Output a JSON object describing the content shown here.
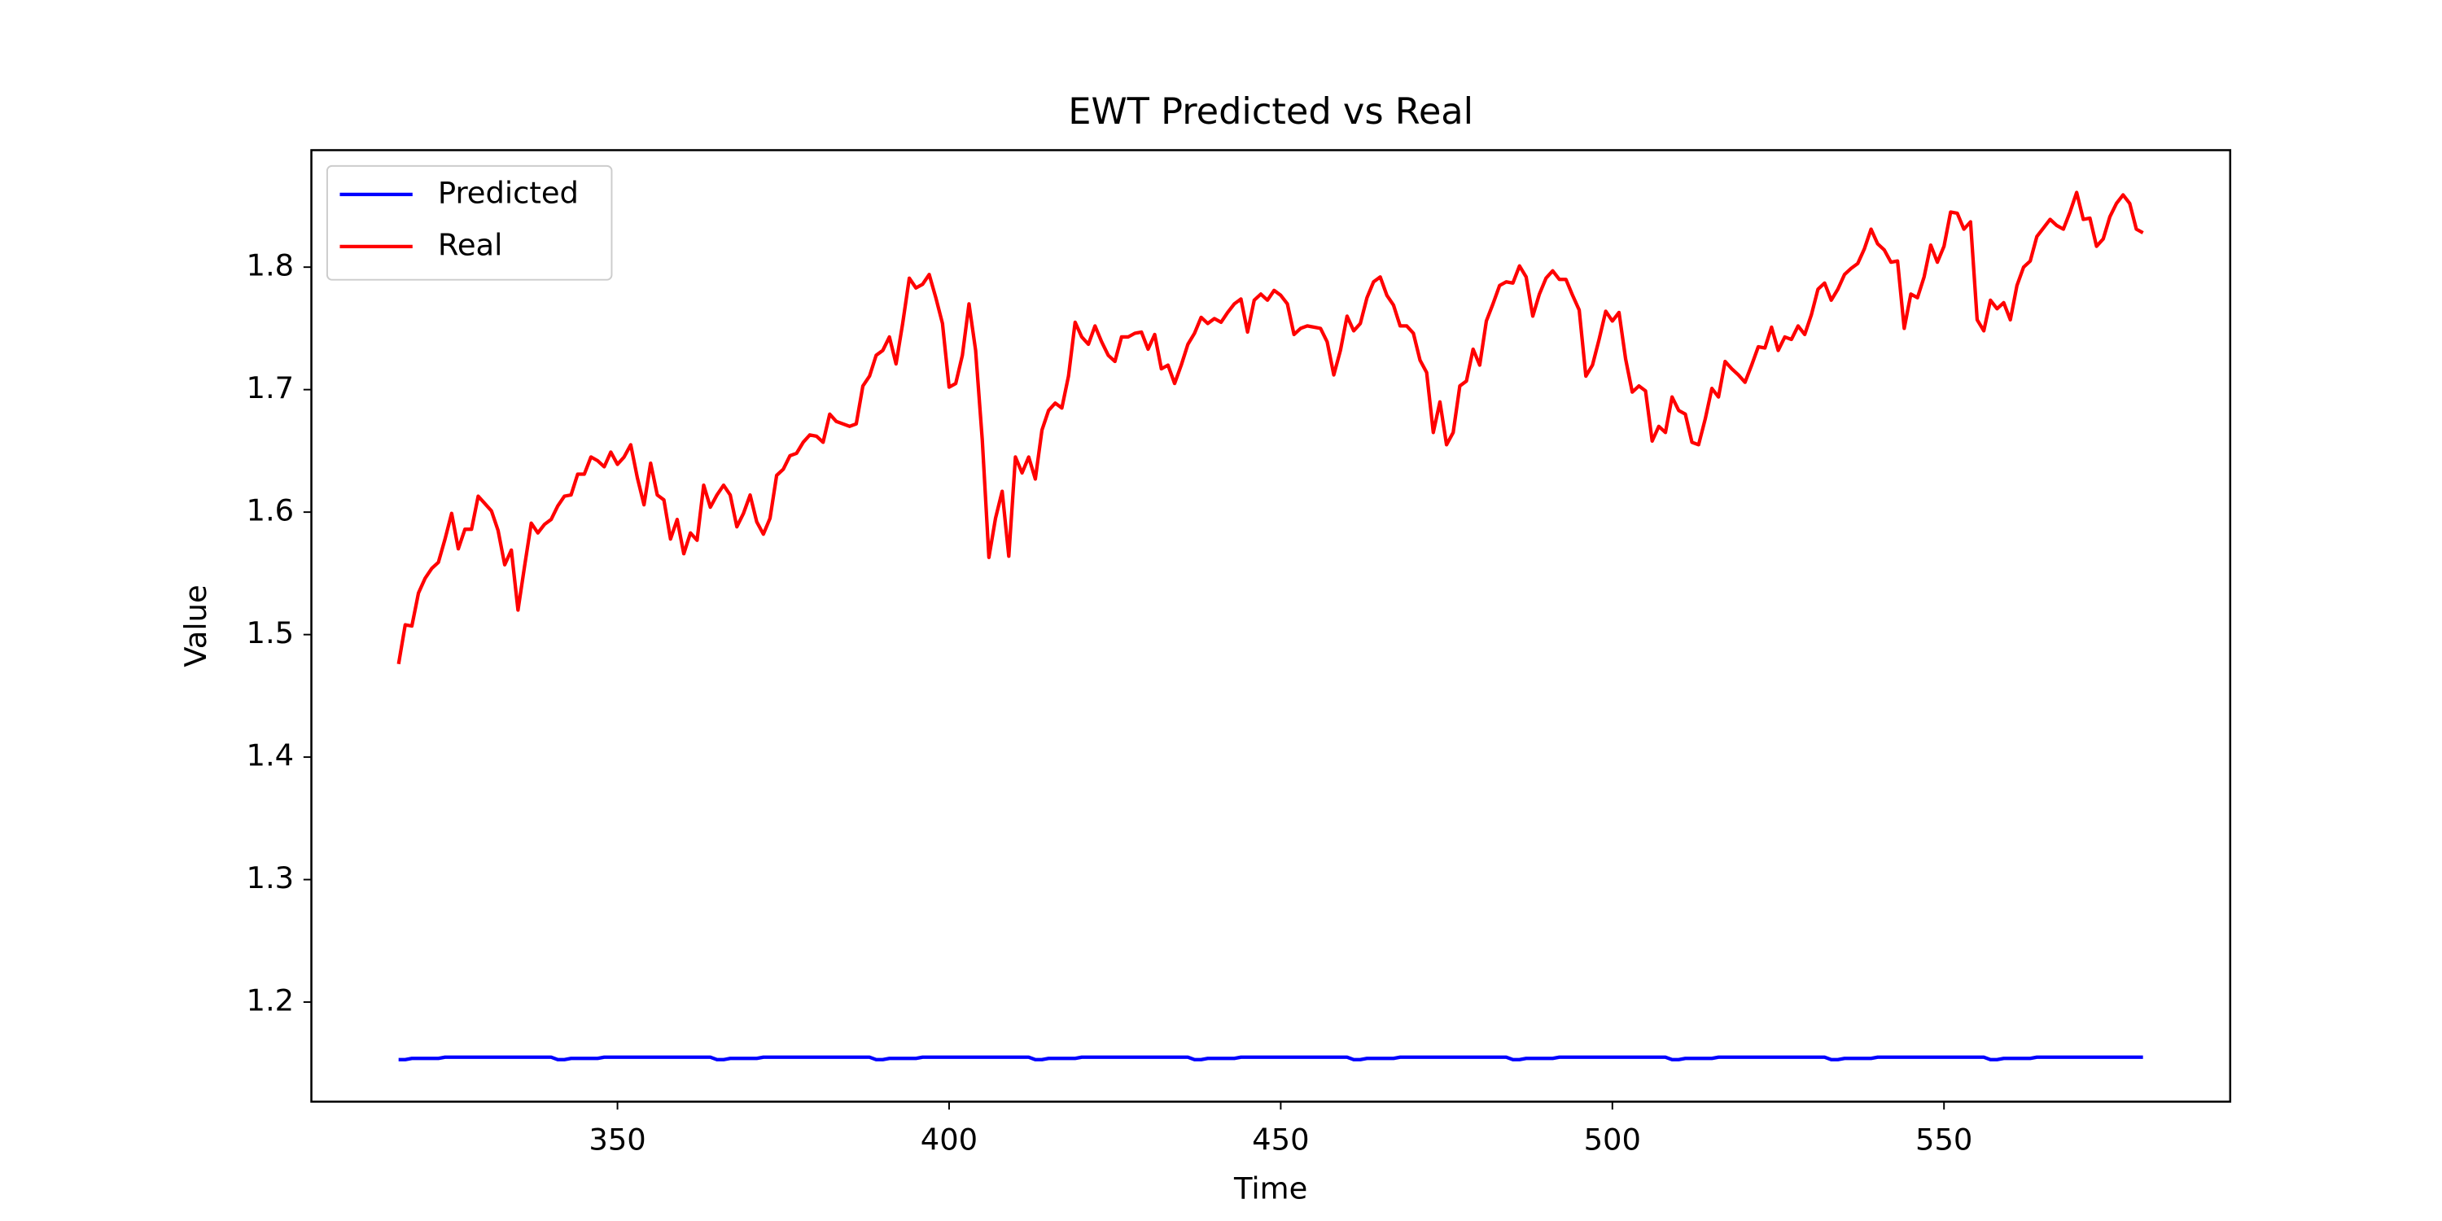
{
  "chart_data": {
    "type": "line",
    "title": "EWT Predicted vs Real",
    "xlabel": "Time",
    "ylabel": "Value",
    "x": [
      317,
      318,
      319,
      320,
      321,
      322,
      323,
      324,
      325,
      326,
      327,
      328,
      329,
      330,
      331,
      332,
      333,
      334,
      335,
      336,
      337,
      338,
      339,
      340,
      341,
      342,
      343,
      344,
      345,
      346,
      347,
      348,
      349,
      350,
      351,
      352,
      353,
      354,
      355,
      356,
      357,
      358,
      359,
      360,
      361,
      362,
      363,
      364,
      365,
      366,
      367,
      368,
      369,
      370,
      371,
      372,
      373,
      374,
      375,
      376,
      377,
      378,
      379,
      380,
      381,
      382,
      383,
      384,
      385,
      386,
      387,
      388,
      389,
      390,
      391,
      392,
      393,
      394,
      395,
      396,
      397,
      398,
      399,
      400,
      401,
      402,
      403,
      404,
      405,
      406,
      407,
      408,
      409,
      410,
      411,
      412,
      413,
      414,
      415,
      416,
      417,
      418,
      419,
      420,
      421,
      422,
      423,
      424,
      425,
      426,
      427,
      428,
      429,
      430,
      431,
      432,
      433,
      434,
      435,
      436,
      437,
      438,
      439,
      440,
      441,
      442,
      443,
      444,
      445,
      446,
      447,
      448,
      449,
      450,
      451,
      452,
      453,
      454,
      455,
      456,
      457,
      458,
      459,
      460,
      461,
      462,
      463,
      464,
      465,
      466,
      467,
      468,
      469,
      470,
      471,
      472,
      473,
      474,
      475,
      476,
      477,
      478,
      479,
      480,
      481,
      482,
      483,
      484,
      485,
      486,
      487,
      488,
      489,
      490,
      491,
      492,
      493,
      494,
      495,
      496,
      497,
      498,
      499,
      500,
      501,
      502,
      503,
      504,
      505,
      506,
      507,
      508,
      509,
      510,
      511,
      512,
      513,
      514,
      515,
      516,
      517,
      518,
      519,
      520,
      521,
      522,
      523,
      524,
      525,
      526,
      527,
      528,
      529,
      530,
      531,
      532,
      533,
      534,
      535,
      536,
      537,
      538,
      539,
      540,
      541,
      542,
      543,
      544,
      545,
      546,
      547,
      548,
      549,
      550,
      551,
      552,
      553,
      554,
      555,
      556,
      557,
      558,
      559,
      560,
      561,
      562,
      563,
      564,
      565,
      566,
      567,
      568,
      569,
      570,
      571,
      572,
      573,
      574,
      575,
      576,
      577,
      578,
      579,
      580
    ],
    "series": [
      {
        "name": "Predicted",
        "color": "#0000ff",
        "values": [
          1.153,
          1.153,
          1.154,
          1.154,
          1.154,
          1.154,
          1.154,
          1.155,
          1.155,
          1.155,
          1.155,
          1.155,
          1.155,
          1.155,
          1.155,
          1.155,
          1.155,
          1.155,
          1.155,
          1.155,
          1.155,
          1.155,
          1.155,
          1.155,
          1.153,
          1.153,
          1.154,
          1.154,
          1.154,
          1.154,
          1.154,
          1.155,
          1.155,
          1.155,
          1.155,
          1.155,
          1.155,
          1.155,
          1.155,
          1.155,
          1.155,
          1.155,
          1.155,
          1.155,
          1.155,
          1.155,
          1.155,
          1.155,
          1.153,
          1.153,
          1.154,
          1.154,
          1.154,
          1.154,
          1.154,
          1.155,
          1.155,
          1.155,
          1.155,
          1.155,
          1.155,
          1.155,
          1.155,
          1.155,
          1.155,
          1.155,
          1.155,
          1.155,
          1.155,
          1.155,
          1.155,
          1.155,
          1.153,
          1.153,
          1.154,
          1.154,
          1.154,
          1.154,
          1.154,
          1.155,
          1.155,
          1.155,
          1.155,
          1.155,
          1.155,
          1.155,
          1.155,
          1.155,
          1.155,
          1.155,
          1.155,
          1.155,
          1.155,
          1.155,
          1.155,
          1.155,
          1.153,
          1.153,
          1.154,
          1.154,
          1.154,
          1.154,
          1.154,
          1.155,
          1.155,
          1.155,
          1.155,
          1.155,
          1.155,
          1.155,
          1.155,
          1.155,
          1.155,
          1.155,
          1.155,
          1.155,
          1.155,
          1.155,
          1.155,
          1.155,
          1.153,
          1.153,
          1.154,
          1.154,
          1.154,
          1.154,
          1.154,
          1.155,
          1.155,
          1.155,
          1.155,
          1.155,
          1.155,
          1.155,
          1.155,
          1.155,
          1.155,
          1.155,
          1.155,
          1.155,
          1.155,
          1.155,
          1.155,
          1.155,
          1.153,
          1.153,
          1.154,
          1.154,
          1.154,
          1.154,
          1.154,
          1.155,
          1.155,
          1.155,
          1.155,
          1.155,
          1.155,
          1.155,
          1.155,
          1.155,
          1.155,
          1.155,
          1.155,
          1.155,
          1.155,
          1.155,
          1.155,
          1.155,
          1.153,
          1.153,
          1.154,
          1.154,
          1.154,
          1.154,
          1.154,
          1.155,
          1.155,
          1.155,
          1.155,
          1.155,
          1.155,
          1.155,
          1.155,
          1.155,
          1.155,
          1.155,
          1.155,
          1.155,
          1.155,
          1.155,
          1.155,
          1.155,
          1.153,
          1.153,
          1.154,
          1.154,
          1.154,
          1.154,
          1.154,
          1.155,
          1.155,
          1.155,
          1.155,
          1.155,
          1.155,
          1.155,
          1.155,
          1.155,
          1.155,
          1.155,
          1.155,
          1.155,
          1.155,
          1.155,
          1.155,
          1.155,
          1.153,
          1.153,
          1.154,
          1.154,
          1.154,
          1.154,
          1.154,
          1.155,
          1.155,
          1.155,
          1.155,
          1.155,
          1.155,
          1.155,
          1.155,
          1.155,
          1.155,
          1.155,
          1.155,
          1.155,
          1.155,
          1.155,
          1.155,
          1.155,
          1.153,
          1.153,
          1.154,
          1.154,
          1.154,
          1.154,
          1.154,
          1.155,
          1.155,
          1.155,
          1.155,
          1.155,
          1.155,
          1.155,
          1.155,
          1.155,
          1.155,
          1.155,
          1.155,
          1.155,
          1.155,
          1.155,
          1.155,
          1.155
        ]
      },
      {
        "name": "Real",
        "color": "#ff0000",
        "values": [
          1.476,
          1.508,
          1.507,
          1.534,
          1.546,
          1.554,
          1.559,
          1.578,
          1.599,
          1.57,
          1.586,
          1.586,
          1.613,
          1.607,
          1.601,
          1.585,
          1.557,
          1.569,
          1.52,
          1.556,
          1.591,
          1.583,
          1.59,
          1.594,
          1.605,
          1.613,
          1.614,
          1.631,
          1.631,
          1.645,
          1.642,
          1.637,
          1.649,
          1.639,
          1.645,
          1.655,
          1.628,
          1.606,
          1.64,
          1.614,
          1.61,
          1.578,
          1.594,
          1.566,
          1.583,
          1.577,
          1.622,
          1.604,
          1.614,
          1.622,
          1.614,
          1.588,
          1.599,
          1.614,
          1.592,
          1.582,
          1.595,
          1.63,
          1.635,
          1.646,
          1.648,
          1.657,
          1.663,
          1.662,
          1.657,
          1.68,
          1.674,
          1.672,
          1.67,
          1.672,
          1.703,
          1.711,
          1.728,
          1.732,
          1.743,
          1.721,
          1.754,
          1.791,
          1.783,
          1.786,
          1.794,
          1.775,
          1.754,
          1.702,
          1.705,
          1.728,
          1.77,
          1.732,
          1.659,
          1.563,
          1.595,
          1.617,
          1.564,
          1.645,
          1.632,
          1.645,
          1.627,
          1.667,
          1.683,
          1.689,
          1.685,
          1.711,
          1.755,
          1.743,
          1.737,
          1.752,
          1.739,
          1.728,
          1.723,
          1.743,
          1.743,
          1.746,
          1.747,
          1.733,
          1.745,
          1.717,
          1.72,
          1.705,
          1.72,
          1.737,
          1.746,
          1.759,
          1.754,
          1.758,
          1.755,
          1.763,
          1.77,
          1.774,
          1.747,
          1.773,
          1.778,
          1.773,
          1.781,
          1.777,
          1.77,
          1.745,
          1.75,
          1.752,
          1.751,
          1.75,
          1.739,
          1.712,
          1.732,
          1.76,
          1.748,
          1.754,
          1.775,
          1.788,
          1.792,
          1.777,
          1.769,
          1.752,
          1.752,
          1.746,
          1.724,
          1.714,
          1.665,
          1.69,
          1.655,
          1.665,
          1.703,
          1.707,
          1.733,
          1.72,
          1.756,
          1.77,
          1.785,
          1.788,
          1.787,
          1.801,
          1.792,
          1.76,
          1.778,
          1.791,
          1.797,
          1.79,
          1.79,
          1.777,
          1.765,
          1.711,
          1.72,
          1.741,
          1.764,
          1.756,
          1.763,
          1.725,
          1.698,
          1.703,
          1.699,
          1.658,
          1.67,
          1.665,
          1.694,
          1.683,
          1.68,
          1.657,
          1.655,
          1.676,
          1.701,
          1.694,
          1.723,
          1.717,
          1.712,
          1.706,
          1.72,
          1.735,
          1.734,
          1.751,
          1.732,
          1.743,
          1.741,
          1.752,
          1.745,
          1.761,
          1.782,
          1.787,
          1.773,
          1.782,
          1.794,
          1.799,
          1.803,
          1.815,
          1.831,
          1.819,
          1.814,
          1.804,
          1.805,
          1.75,
          1.778,
          1.775,
          1.792,
          1.818,
          1.804,
          1.817,
          1.845,
          1.844,
          1.831,
          1.837,
          1.757,
          1.748,
          1.773,
          1.766,
          1.771,
          1.757,
          1.785,
          1.8,
          1.805,
          1.825,
          1.832,
          1.839,
          1.834,
          1.831,
          1.845,
          1.861,
          1.839,
          1.84,
          1.817,
          1.823,
          1.841,
          1.852,
          1.859,
          1.852,
          1.831,
          1.828
        ]
      }
    ],
    "xlim": [
      303.85,
      593.15
    ],
    "xticks": [
      350,
      400,
      450,
      500,
      550
    ],
    "ylim": [
      1.1187,
      1.8955
    ],
    "yticks": [
      1.2,
      1.3,
      1.4,
      1.5,
      1.6,
      1.7,
      1.8
    ],
    "legend": "upper left",
    "grid": false
  }
}
